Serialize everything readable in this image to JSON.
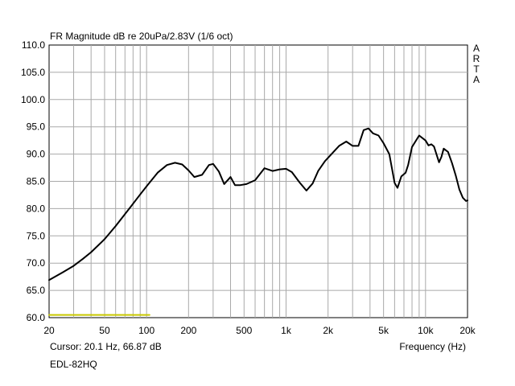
{
  "chart_data": {
    "type": "line",
    "title": "FR Magnitude dB re 20uPa/2.83V (1/6 oct)",
    "xlabel": "Frequency (Hz)",
    "ylabel": "",
    "x_scale": "log",
    "xlim": [
      20,
      20000
    ],
    "ylim": [
      60,
      110
    ],
    "grid": true,
    "x_ticks": [
      20,
      50,
      100,
      200,
      500,
      1000,
      2000,
      5000,
      10000,
      20000
    ],
    "x_tick_labels": [
      "20",
      "50",
      "100",
      "200",
      "500",
      "1k",
      "2k",
      "5k",
      "10k",
      "20k"
    ],
    "y_ticks": [
      60,
      65,
      70,
      75,
      80,
      85,
      90,
      95,
      100,
      105,
      110
    ],
    "y_tick_labels": [
      "60.0",
      "65.0",
      "70.0",
      "75.0",
      "80.0",
      "85.0",
      "90.0",
      "95.0",
      "100.0",
      "105.0",
      "110.0"
    ],
    "series": [
      {
        "color": "#000000",
        "x": [
          20,
          25,
          30,
          35,
          40,
          50,
          60,
          70,
          80,
          90,
          100,
          120,
          140,
          160,
          180,
          200,
          220,
          250,
          280,
          300,
          330,
          360,
          400,
          430,
          470,
          520,
          600,
          700,
          800,
          900,
          1000,
          1100,
          1250,
          1400,
          1550,
          1700,
          1900,
          2100,
          2400,
          2700,
          3000,
          3300,
          3600,
          3900,
          4200,
          4600,
          5000,
          5500,
          6000,
          6300,
          6700,
          7200,
          7500,
          8000,
          9000,
          10000,
          10500,
          11000,
          11500,
          12500,
          13000,
          13500,
          14500,
          15500,
          16500,
          17500,
          18500,
          19500,
          20000
        ],
        "y": [
          66.9,
          68.3,
          69.5,
          70.8,
          72.0,
          74.4,
          76.8,
          79.0,
          80.9,
          82.6,
          84.1,
          86.6,
          88.0,
          88.4,
          88.1,
          87.0,
          85.8,
          86.2,
          88.0,
          88.2,
          86.8,
          84.5,
          85.8,
          84.3,
          84.3,
          84.5,
          85.2,
          87.4,
          86.9,
          87.2,
          87.3,
          86.7,
          84.8,
          83.3,
          84.6,
          86.9,
          88.7,
          89.9,
          91.5,
          92.3,
          91.5,
          91.5,
          94.4,
          94.7,
          93.8,
          93.4,
          92.0,
          90.0,
          84.7,
          83.8,
          85.9,
          86.6,
          88.0,
          91.3,
          93.4,
          92.5,
          91.6,
          91.8,
          91.4,
          88.5,
          89.5,
          91.0,
          90.4,
          88.3,
          86.0,
          83.5,
          82.0,
          81.4,
          81.5
        ]
      },
      {
        "color": "#c8c800",
        "x": [
          20,
          105
        ],
        "y": [
          60.5,
          60.5
        ]
      }
    ]
  },
  "footer": {
    "cursor_readout": "Cursor: 20.1 Hz, 66.87 dB",
    "device_name": "EDL-82HQ"
  },
  "brand": {
    "logo_letters": [
      "A",
      "R",
      "T",
      "A"
    ]
  },
  "colors": {
    "grid": "#a9a9a9",
    "curve": "#000000",
    "cursor_marker": "#c8c800"
  }
}
